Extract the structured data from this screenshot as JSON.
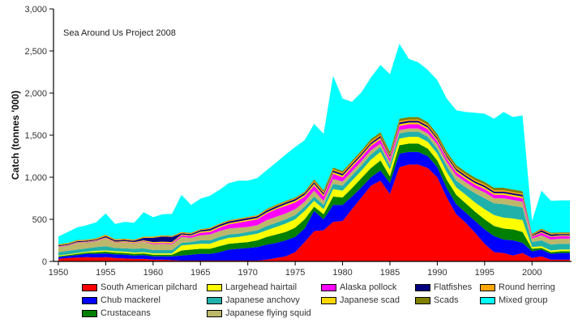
{
  "chart_data": {
    "type": "area",
    "stacked": true,
    "title": "",
    "annotation": "Sea Around Us Project 2008",
    "xlabel": "",
    "ylabel": "Catch (tonnes '000)",
    "xlim": [
      1950,
      2004
    ],
    "ylim": [
      0,
      3000
    ],
    "grid": false,
    "legend_position": "bottom",
    "x_ticks": [
      "1950",
      "1955",
      "1960",
      "1965",
      "1970",
      "1975",
      "1980",
      "1985",
      "1990",
      "1995",
      "2000"
    ],
    "y_ticks": [
      "0",
      "500",
      "1,000",
      "1,500",
      "2,000",
      "2,500",
      "3,000"
    ],
    "x": [
      1950,
      1951,
      1952,
      1953,
      1954,
      1955,
      1956,
      1957,
      1958,
      1959,
      1960,
      1961,
      1962,
      1963,
      1964,
      1965,
      1966,
      1967,
      1968,
      1969,
      1970,
      1971,
      1972,
      1973,
      1974,
      1975,
      1976,
      1977,
      1978,
      1979,
      1980,
      1981,
      1982,
      1983,
      1984,
      1985,
      1986,
      1987,
      1988,
      1989,
      1990,
      1991,
      1992,
      1993,
      1994,
      1995,
      1996,
      1997,
      1998,
      1999,
      2000,
      2001,
      2002,
      2003,
      2004
    ],
    "series": [
      {
        "name": "South American pilchard",
        "color": "#ff0000",
        "values": [
          30,
          40,
          45,
          50,
          45,
          50,
          40,
          35,
          30,
          30,
          20,
          20,
          15,
          10,
          10,
          10,
          10,
          10,
          10,
          10,
          10,
          10,
          20,
          40,
          60,
          110,
          230,
          360,
          370,
          470,
          480,
          620,
          760,
          900,
          960,
          800,
          1120,
          1150,
          1150,
          1110,
          1000,
          760,
          560,
          460,
          340,
          210,
          110,
          100,
          70,
          100,
          40,
          60,
          20,
          20,
          20
        ]
      },
      {
        "name": "Chub mackerel",
        "color": "#0000ff",
        "values": [
          20,
          25,
          30,
          40,
          45,
          45,
          45,
          45,
          40,
          45,
          40,
          40,
          45,
          60,
          70,
          80,
          80,
          100,
          130,
          140,
          150,
          160,
          180,
          180,
          190,
          180,
          160,
          240,
          130,
          200,
          190,
          150,
          120,
          100,
          120,
          130,
          160,
          150,
          150,
          140,
          120,
          110,
          120,
          120,
          140,
          170,
          190,
          160,
          180,
          120,
          80,
          80,
          70,
          80,
          80
        ]
      },
      {
        "name": "Crustaceans",
        "color": "#007f00",
        "values": [
          10,
          10,
          15,
          15,
          20,
          20,
          20,
          20,
          20,
          20,
          20,
          20,
          20,
          60,
          60,
          60,
          60,
          70,
          70,
          70,
          70,
          80,
          90,
          100,
          100,
          110,
          110,
          50,
          60,
          100,
          90,
          100,
          110,
          110,
          120,
          80,
          100,
          100,
          100,
          90,
          80,
          100,
          110,
          110,
          110,
          120,
          120,
          130,
          130,
          130,
          30,
          20,
          20,
          20,
          20
        ]
      },
      {
        "name": "Largehead hairtail",
        "color": "#ffff00",
        "values": [
          10,
          10,
          10,
          10,
          15,
          15,
          15,
          15,
          15,
          15,
          15,
          15,
          15,
          60,
          60,
          60,
          60,
          70,
          70,
          70,
          80,
          80,
          80,
          90,
          100,
          100,
          100,
          70,
          60,
          90,
          80,
          90,
          90,
          100,
          100,
          80,
          80,
          80,
          80,
          80,
          80,
          90,
          90,
          100,
          110,
          120,
          130,
          130,
          130,
          140,
          20,
          20,
          20,
          20,
          20
        ]
      },
      {
        "name": "Japanese anchovy",
        "color": "#20b2aa",
        "values": [
          40,
          40,
          40,
          40,
          45,
          50,
          40,
          40,
          45,
          45,
          40,
          40,
          40,
          30,
          30,
          40,
          40,
          40,
          40,
          40,
          40,
          40,
          50,
          50,
          50,
          50,
          50,
          50,
          50,
          60,
          60,
          60,
          60,
          60,
          60,
          50,
          60,
          60,
          60,
          60,
          60,
          70,
          80,
          90,
          110,
          130,
          140,
          160,
          150,
          150,
          60,
          70,
          70,
          70,
          70
        ]
      },
      {
        "name": "Japanese flying squid",
        "color": "#bdb76b",
        "values": [
          60,
          60,
          80,
          70,
          70,
          90,
          60,
          70,
          65,
          80,
          70,
          75,
          70,
          70,
          50,
          60,
          70,
          70,
          70,
          70,
          60,
          60,
          70,
          70,
          70,
          70,
          60,
          70,
          50,
          60,
          50,
          50,
          50,
          50,
          40,
          40,
          40,
          40,
          40,
          40,
          50,
          50,
          60,
          60,
          60,
          70,
          60,
          70,
          70,
          70,
          40,
          60,
          60,
          60,
          60
        ]
      },
      {
        "name": "Alaska pollock",
        "color": "#ff00ff",
        "values": [
          5,
          5,
          5,
          5,
          5,
          5,
          5,
          5,
          5,
          5,
          10,
          10,
          10,
          20,
          20,
          30,
          30,
          40,
          50,
          60,
          70,
          70,
          80,
          90,
          90,
          80,
          60,
          60,
          50,
          60,
          50,
          50,
          50,
          50,
          50,
          40,
          50,
          50,
          50,
          50,
          40,
          40,
          40,
          40,
          40,
          40,
          40,
          40,
          40,
          40,
          20,
          30,
          30,
          30,
          30
        ]
      },
      {
        "name": "Japanese scad",
        "color": "#ffd700",
        "values": [
          5,
          5,
          5,
          5,
          5,
          10,
          10,
          10,
          10,
          10,
          15,
          15,
          15,
          10,
          10,
          15,
          15,
          15,
          15,
          15,
          15,
          15,
          15,
          15,
          20,
          20,
          20,
          20,
          20,
          20,
          20,
          20,
          20,
          20,
          20,
          20,
          20,
          20,
          20,
          20,
          20,
          20,
          20,
          20,
          20,
          20,
          20,
          20,
          20,
          20,
          10,
          10,
          10,
          10,
          10
        ]
      },
      {
        "name": "Flatfishes",
        "color": "#000080",
        "values": [
          10,
          10,
          10,
          10,
          10,
          15,
          15,
          15,
          15,
          30,
          50,
          60,
          60,
          15,
          15,
          15,
          20,
          20,
          20,
          20,
          20,
          20,
          20,
          20,
          20,
          20,
          20,
          20,
          20,
          20,
          20,
          20,
          20,
          20,
          20,
          20,
          20,
          20,
          20,
          20,
          20,
          20,
          20,
          20,
          20,
          20,
          20,
          20,
          20,
          20,
          10,
          20,
          20,
          15,
          15
        ]
      },
      {
        "name": "Round herring",
        "color": "#ffa500",
        "values": [
          10,
          10,
          10,
          10,
          10,
          15,
          10,
          10,
          10,
          10,
          10,
          10,
          10,
          10,
          10,
          10,
          10,
          10,
          10,
          10,
          10,
          10,
          10,
          10,
          10,
          10,
          10,
          15,
          15,
          15,
          15,
          15,
          15,
          15,
          15,
          15,
          15,
          15,
          15,
          15,
          15,
          15,
          15,
          15,
          15,
          15,
          15,
          15,
          15,
          15,
          10,
          10,
          10,
          10,
          10
        ]
      },
      {
        "name": "Scads",
        "color": "#808000",
        "values": [
          5,
          5,
          5,
          5,
          5,
          5,
          5,
          5,
          5,
          5,
          5,
          5,
          5,
          5,
          5,
          5,
          5,
          5,
          5,
          5,
          5,
          5,
          10,
          10,
          10,
          10,
          10,
          20,
          20,
          20,
          20,
          20,
          25,
          30,
          30,
          30,
          30,
          30,
          30,
          30,
          30,
          30,
          30,
          30,
          30,
          30,
          30,
          30,
          30,
          30,
          10,
          10,
          10,
          10,
          10
        ]
      },
      {
        "name": "Mixed group",
        "color": "#00ffff",
        "values": [
          90,
          130,
          150,
          170,
          190,
          250,
          180,
          200,
          200,
          290,
          230,
          250,
          260,
          440,
          330,
          360,
          380,
          400,
          440,
          450,
          430,
          440,
          460,
          500,
          550,
          600,
          610,
          660,
          670,
          1090,
          860,
          700,
          690,
          730,
          800,
          920,
          890,
          690,
          650,
          620,
          640,
          630,
          650,
          710,
          770,
          810,
          820,
          900,
          860,
          900,
          150,
          450,
          380,
          380,
          380
        ]
      }
    ]
  }
}
